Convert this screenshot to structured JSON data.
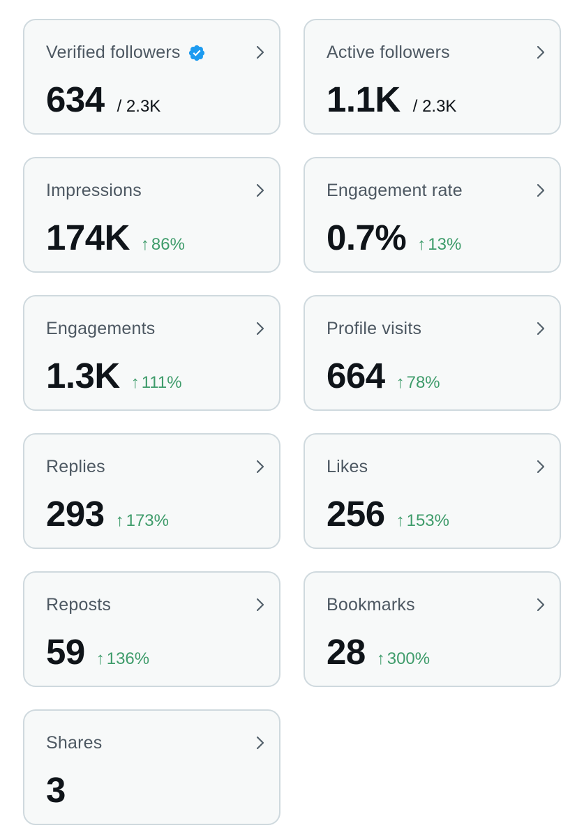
{
  "colors": {
    "card_background": "#f7f9f9",
    "card_border": "#cfd9de",
    "label_text": "#4d5862",
    "value_text": "#0f1419",
    "positive_change": "#3f9c6b",
    "verified_badge": "#1d9bf0"
  },
  "cards": [
    {
      "label": "Verified followers",
      "value": "634",
      "total": "/ 2.3K",
      "icon": "verified-badge-icon"
    },
    {
      "label": "Active followers",
      "value": "1.1K",
      "total": "/ 2.3K"
    },
    {
      "label": "Impressions",
      "value": "174K",
      "change": "86%"
    },
    {
      "label": "Engagement rate",
      "value": "0.7%",
      "change": "13%"
    },
    {
      "label": "Engagements",
      "value": "1.3K",
      "change": "111%"
    },
    {
      "label": "Profile visits",
      "value": "664",
      "change": "78%"
    },
    {
      "label": "Replies",
      "value": "293",
      "change": "173%"
    },
    {
      "label": "Likes",
      "value": "256",
      "change": "153%"
    },
    {
      "label": "Reposts",
      "value": "59",
      "change": "136%"
    },
    {
      "label": "Bookmarks",
      "value": "28",
      "change": "300%"
    },
    {
      "label": "Shares",
      "value": "3"
    }
  ],
  "icons": {
    "chevron": "chevron-right-icon",
    "arrow": "arrow-up-icon"
  }
}
